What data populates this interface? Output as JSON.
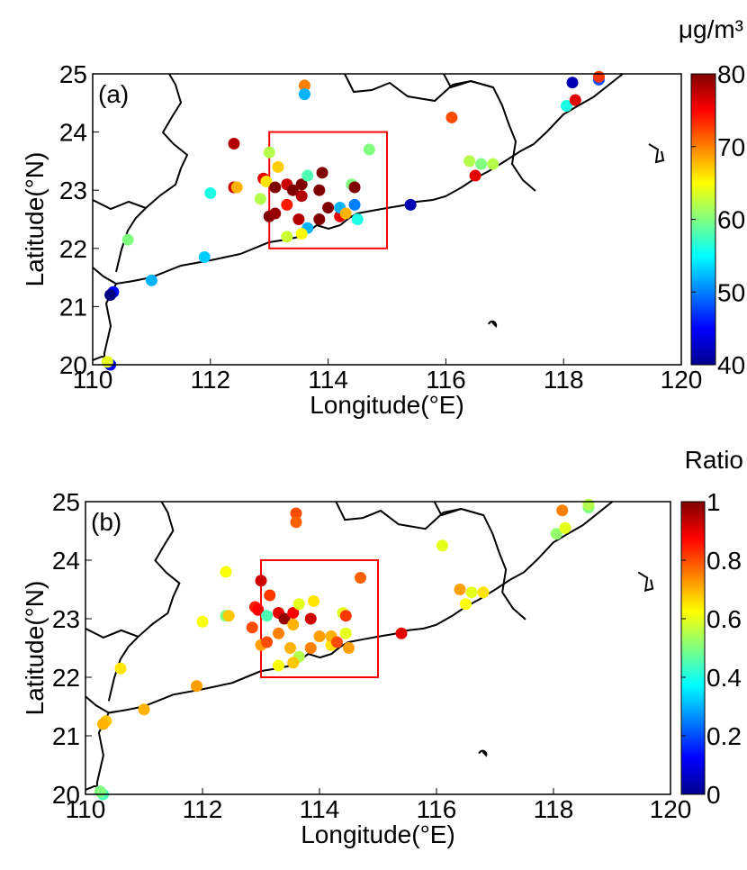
{
  "chart_data": [
    {
      "type": "scatter",
      "title": "(a)",
      "x_label": "Longitude(°E)",
      "y_label": "Latitude(°N)",
      "xlim": [
        110,
        120
      ],
      "ylim": [
        20,
        25
      ],
      "xticks": [
        110,
        112,
        114,
        116,
        118,
        120
      ],
      "yticks": [
        20,
        21,
        22,
        23,
        24,
        25
      ],
      "colormap": "jet",
      "clim": [
        40,
        80
      ],
      "cticks": [
        40,
        50,
        60,
        70,
        80
      ],
      "colorbar_label": "μg/m³",
      "box": {
        "x": [
          113,
          115
        ],
        "y": [
          22,
          24
        ],
        "color": "#ff0000"
      },
      "x": [
        112.4,
        112.4,
        112.45,
        112.0,
        112.85,
        112.9,
        112.95,
        113.1,
        113.0,
        113.15,
        113.3,
        113.4,
        113.55,
        113.55,
        113.0,
        113.1,
        113.3,
        113.5,
        113.65,
        113.65,
        113.55,
        113.3,
        113.9,
        113.85,
        113.85,
        114.0,
        114.2,
        114.2,
        114.3,
        114.4,
        114.45,
        114.5,
        114.45,
        114.7,
        115.4,
        116.1,
        116.4,
        116.5,
        116.8,
        116.6,
        118.05,
        118.15,
        118.2,
        118.6,
        118.6,
        113.6,
        113.6,
        110.6,
        111.0,
        111.9,
        110.35,
        110.3,
        110.3,
        110.25
      ],
      "y": [
        23.8,
        23.05,
        23.05,
        22.95,
        22.85,
        23.2,
        23.15,
        23.05,
        23.65,
        23.4,
        23.1,
        23.0,
        23.1,
        22.9,
        22.55,
        22.6,
        22.75,
        22.5,
        23.25,
        22.35,
        22.25,
        22.2,
        23.3,
        23.0,
        22.5,
        22.7,
        22.55,
        22.7,
        22.6,
        23.1,
        22.75,
        22.5,
        23.05,
        23.7,
        22.75,
        24.25,
        23.5,
        23.25,
        23.45,
        23.45,
        24.45,
        24.85,
        24.55,
        24.9,
        24.95,
        24.8,
        24.65,
        22.15,
        21.45,
        21.85,
        21.25,
        21.2,
        20.0,
        20.05
      ],
      "color_values": [
        78,
        77,
        68,
        56,
        62,
        76,
        66,
        80,
        62,
        67,
        77,
        80,
        80,
        78,
        80,
        79,
        74,
        78,
        58,
        52,
        65,
        63,
        80,
        80,
        80,
        80,
        76,
        52,
        68,
        60,
        50,
        56,
        80,
        60,
        42,
        72,
        62,
        76,
        62,
        60,
        56,
        42,
        76,
        48,
        73,
        70,
        52,
        60,
        52,
        53,
        45,
        40,
        45,
        64
      ]
    },
    {
      "type": "scatter",
      "title": "(b)",
      "x_label": "Longitude(°E)",
      "y_label": "Latitude(°N)",
      "xlim": [
        110,
        120
      ],
      "ylim": [
        20,
        25
      ],
      "xticks": [
        110,
        112,
        114,
        116,
        118,
        120
      ],
      "yticks": [
        20,
        21,
        22,
        23,
        24,
        25
      ],
      "colormap": "jet",
      "clim": [
        0,
        1
      ],
      "cticks": [
        0,
        0.2,
        0.4,
        0.6,
        0.8,
        1
      ],
      "colorbar_label": "Ratio",
      "box": {
        "x": [
          113,
          115
        ],
        "y": [
          22,
          24
        ],
        "color": "#ff0000"
      },
      "x": [
        112.4,
        112.4,
        112.45,
        112.0,
        112.85,
        112.9,
        112.95,
        113.1,
        113.0,
        113.15,
        113.3,
        113.4,
        113.55,
        113.55,
        113.0,
        113.1,
        113.3,
        113.5,
        113.65,
        113.65,
        113.55,
        113.3,
        113.9,
        113.85,
        113.85,
        114.0,
        114.2,
        114.2,
        114.3,
        114.4,
        114.45,
        114.5,
        114.45,
        114.7,
        115.4,
        116.1,
        116.4,
        116.5,
        116.8,
        116.6,
        118.05,
        118.15,
        118.2,
        118.6,
        118.6,
        113.6,
        113.6,
        110.6,
        111.0,
        111.9,
        110.35,
        110.3,
        110.3,
        110.25
      ],
      "y": [
        23.8,
        23.05,
        23.05,
        22.95,
        22.85,
        23.2,
        23.15,
        23.05,
        23.65,
        23.4,
        23.1,
        23.0,
        23.1,
        22.9,
        22.55,
        22.6,
        22.75,
        22.5,
        23.25,
        22.35,
        22.25,
        22.2,
        23.3,
        23.0,
        22.5,
        22.7,
        22.55,
        22.7,
        22.6,
        23.1,
        22.75,
        22.5,
        23.05,
        23.7,
        22.75,
        24.25,
        23.5,
        23.25,
        23.45,
        23.45,
        24.45,
        24.85,
        24.55,
        24.9,
        24.95,
        24.8,
        24.65,
        22.15,
        21.45,
        21.85,
        21.25,
        21.2,
        20.0,
        20.05
      ],
      "color_values": [
        0.62,
        0.5,
        0.68,
        0.62,
        0.8,
        0.85,
        0.88,
        0.45,
        0.92,
        0.82,
        0.9,
        0.98,
        0.88,
        0.7,
        0.72,
        0.8,
        0.75,
        0.7,
        0.6,
        0.55,
        0.68,
        0.62,
        0.65,
        0.92,
        0.75,
        0.72,
        0.65,
        0.7,
        0.8,
        0.6,
        0.6,
        0.72,
        0.82,
        0.78,
        0.9,
        0.6,
        0.72,
        0.62,
        0.65,
        0.6,
        0.52,
        0.75,
        0.6,
        0.5,
        0.55,
        0.8,
        0.78,
        0.65,
        0.7,
        0.72,
        0.68,
        0.7,
        0.45,
        0.5
      ]
    }
  ]
}
